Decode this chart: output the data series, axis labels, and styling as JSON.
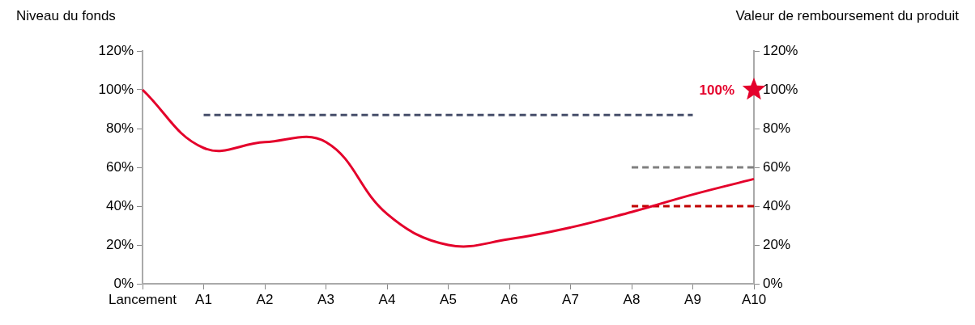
{
  "chart_data": {
    "type": "line",
    "ylabel": "Niveau du fonds",
    "y2label": "Valeur de remboursement du produit",
    "categories": [
      "Lancement",
      "A1",
      "A2",
      "A3",
      "A4",
      "A5",
      "A6",
      "A7",
      "A8",
      "A9",
      "A10"
    ],
    "series": [
      {
        "color": "#e4002b",
        "values": [
          100,
          70,
          73,
          73,
          36,
          20,
          23,
          29,
          37,
          46,
          54
        ]
      },
      {
        "color": "#464e6a",
        "line_style": "dashed",
        "values": [
          null,
          87,
          87,
          87,
          87,
          87,
          87,
          87,
          87,
          87,
          null
        ]
      },
      {
        "color": "#808080",
        "line_style": "dashed",
        "values": [
          null,
          null,
          null,
          null,
          null,
          null,
          null,
          null,
          60,
          60,
          60
        ]
      },
      {
        "color": "#c00000",
        "line_style": "dashed",
        "values": [
          null,
          null,
          null,
          null,
          null,
          null,
          null,
          null,
          40,
          40,
          40
        ]
      },
      {
        "type": "scatter",
        "marker": "star",
        "color": "#e4002b",
        "values": [
          null,
          null,
          null,
          null,
          null,
          null,
          null,
          null,
          null,
          null,
          100
        ],
        "value_labels": [
          null,
          null,
          null,
          null,
          null,
          null,
          null,
          null,
          null,
          null,
          "100%"
        ]
      }
    ],
    "ylim": [
      0,
      120
    ],
    "yticks": [
      {
        "value": 0,
        "label": "0%"
      },
      {
        "value": 20,
        "label": "20%"
      },
      {
        "value": 40,
        "label": "40%"
      },
      {
        "value": 60,
        "label": "60%"
      },
      {
        "value": 80,
        "label": "80%"
      },
      {
        "value": 100,
        "label": "100%"
      },
      {
        "value": 120,
        "label": "120%"
      }
    ],
    "y2lim": [
      0,
      120
    ],
    "y2ticks": [
      {
        "value": 0,
        "label": "0%"
      },
      {
        "value": 20,
        "label": "20%"
      },
      {
        "value": 40,
        "label": "40%"
      },
      {
        "value": 60,
        "label": "60%"
      },
      {
        "value": 80,
        "label": "80%"
      },
      {
        "value": 100,
        "label": "100%"
      },
      {
        "value": 120,
        "label": "120%"
      }
    ],
    "grid": false,
    "legend": false,
    "marker": "none"
  }
}
